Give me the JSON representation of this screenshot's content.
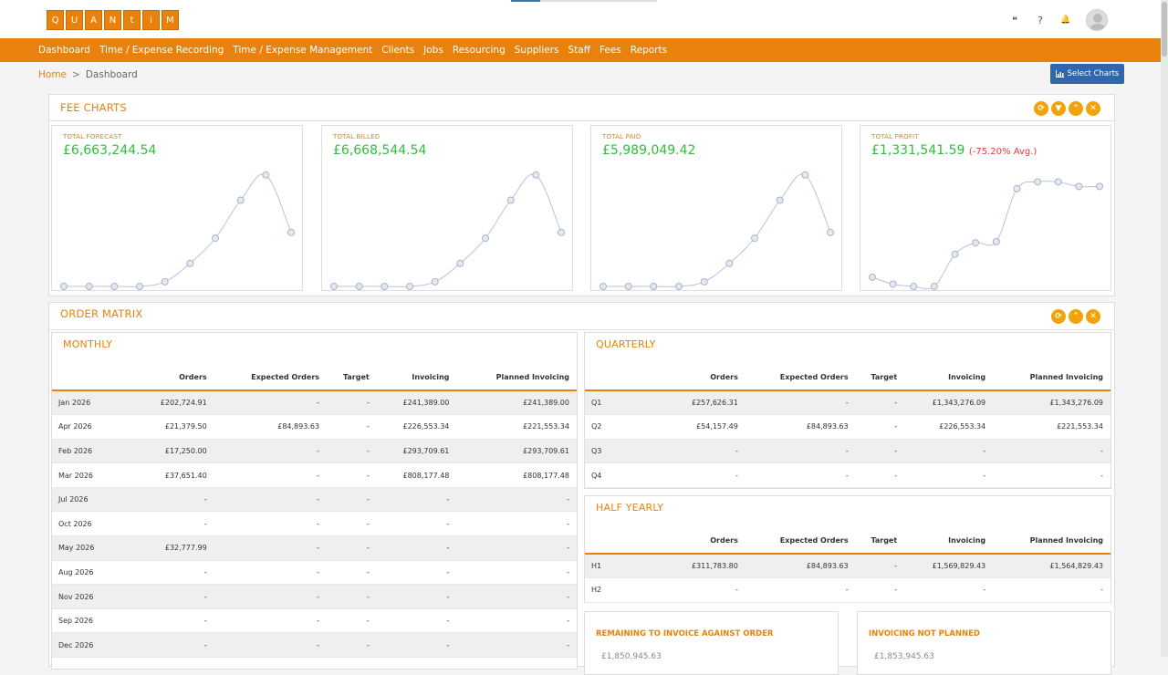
{
  "logo": {
    "letters": [
      "Q",
      "U",
      "A",
      "N",
      "t",
      "i",
      "M"
    ]
  },
  "top_icons": {
    "quote": "❝",
    "help": "?",
    "bell": "🔔"
  },
  "nav": {
    "items": [
      "Dashboard",
      "Time / Expense Recording",
      "Time / Expense Management",
      "Clients",
      "Jobs",
      "Resourcing",
      "Suppliers",
      "Staff",
      "Fees",
      "Reports"
    ]
  },
  "breadcrumb": {
    "home": "Home",
    "separator": ">",
    "current": "Dashboard"
  },
  "select_charts": {
    "label": "Select Charts"
  },
  "fee_charts": {
    "title": "FEE CHARTS",
    "cards": [
      {
        "label": "TOTAL FORECAST",
        "value": "£6,663,244.54",
        "avg": ""
      },
      {
        "label": "TOTAL BILLED",
        "value": "£6,668,544.54",
        "avg": ""
      },
      {
        "label": "TOTAL PAID",
        "value": "£5,989,049.42",
        "avg": ""
      },
      {
        "label": "TOTAL PROFIT",
        "value": "£1,331,541.59",
        "avg": "(-75.20% Avg.)"
      }
    ]
  },
  "chart_data": [
    {
      "type": "line",
      "title": "",
      "values": [
        0,
        0,
        0,
        0,
        4,
        20,
        42,
        75,
        97,
        47
      ],
      "ylim": [
        0,
        100
      ],
      "grid": false
    },
    {
      "type": "line",
      "title": "",
      "values": [
        0,
        0,
        0,
        0,
        4,
        20,
        42,
        75,
        97,
        47
      ],
      "ylim": [
        0,
        100
      ],
      "grid": false
    },
    {
      "type": "line",
      "title": "",
      "values": [
        0,
        0,
        0,
        0,
        4,
        20,
        42,
        75,
        97,
        47
      ],
      "ylim": [
        0,
        100
      ],
      "grid": false
    },
    {
      "type": "line",
      "title": "",
      "values": [
        8,
        2,
        0,
        0,
        28,
        38,
        39,
        85,
        91,
        91,
        87,
        87
      ],
      "ylim": [
        0,
        100
      ],
      "grid": false
    }
  ],
  "order_matrix": {
    "title": "ORDER MATRIX",
    "monthly": {
      "title": "MONTHLY",
      "headers": [
        "",
        "Orders",
        "Expected Orders",
        "Target",
        "Invoicing",
        "Planned Invoicing"
      ],
      "rows": [
        [
          "Jan 2026",
          "£202,724.91",
          "-",
          "-",
          "£241,389.00",
          "£241,389.00"
        ],
        [
          "Apr 2026",
          "£21,379.50",
          "£84,893.63",
          "-",
          "£226,553.34",
          "£221,553.34"
        ],
        [
          "Feb 2026",
          "£17,250.00",
          "-",
          "-",
          "£293,709.61",
          "£293,709.61"
        ],
        [
          "Mar 2026",
          "£37,651.40",
          "-",
          "-",
          "£808,177.48",
          "£808,177.48"
        ],
        [
          "Jul 2026",
          "-",
          "-",
          "-",
          "-",
          "-"
        ],
        [
          "Oct 2026",
          "-",
          "-",
          "-",
          "-",
          "-"
        ],
        [
          "May 2026",
          "£32,777.99",
          "-",
          "-",
          "-",
          "-"
        ],
        [
          "Aug 2026",
          "-",
          "-",
          "-",
          "-",
          "-"
        ],
        [
          "Nov 2026",
          "-",
          "-",
          "-",
          "-",
          "-"
        ],
        [
          "Sep 2026",
          "-",
          "-",
          "-",
          "-",
          "-"
        ],
        [
          "Dec 2026",
          "-",
          "-",
          "-",
          "-",
          "-"
        ]
      ]
    },
    "quarterly": {
      "title": "QUARTERLY",
      "headers": [
        "",
        "Orders",
        "Expected Orders",
        "Target",
        "Invoicing",
        "Planned Invoicing"
      ],
      "rows": [
        [
          "Q1",
          "£257,626.31",
          "-",
          "-",
          "£1,343,276.09",
          "£1,343,276.09"
        ],
        [
          "Q2",
          "£54,157.49",
          "£84,893.63",
          "-",
          "£226,553.34",
          "£221,553.34"
        ],
        [
          "Q3",
          "-",
          "-",
          "-",
          "-",
          "-"
        ],
        [
          "Q4",
          "-",
          "-",
          "-",
          "-",
          "-"
        ]
      ]
    },
    "half_yearly": {
      "title": "HALF YEARLY",
      "headers": [
        "",
        "Orders",
        "Expected Orders",
        "Target",
        "Invoicing",
        "Planned Invoicing"
      ],
      "rows": [
        [
          "H1",
          "£311,783.80",
          "£84,893.63",
          "-",
          "£1,569,829.43",
          "£1,564,829.43"
        ],
        [
          "H2",
          "-",
          "-",
          "-",
          "-",
          "-"
        ]
      ]
    },
    "remaining": {
      "title": "REMAINING TO INVOICE AGAINST ORDER",
      "value": "£1,850,945.63"
    },
    "not_planned": {
      "title": "INVOICING NOT PLANNED",
      "value": "£1,853,945.63"
    }
  },
  "colors": {
    "brand": "#e8820c",
    "positive": "#2fbf3a",
    "negative": "#e53935",
    "button": "#2f66ad"
  }
}
